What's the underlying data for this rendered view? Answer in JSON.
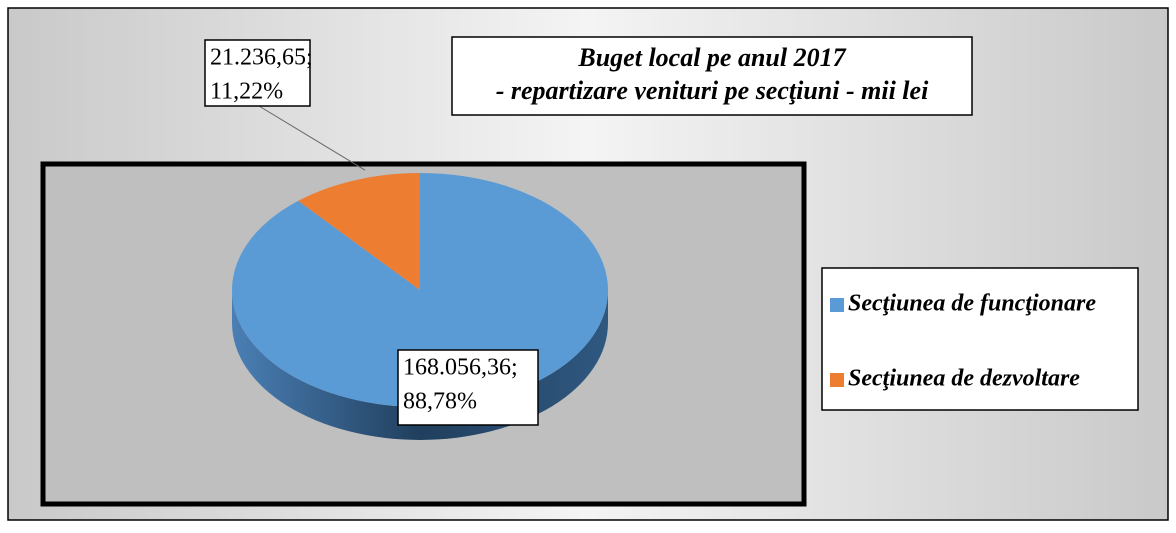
{
  "chart_data": {
    "type": "pie",
    "title": [
      "Buget local pe anul 2017",
      "- repartizare venituri pe secţiuni - mii lei"
    ],
    "categories": [
      "Secţiunea de funcţionare",
      "Secţiunea de dezvoltare"
    ],
    "values": [
      168056.36,
      21236.65
    ],
    "value_labels": [
      [
        "168.056,36;",
        "88,78%"
      ],
      [
        "21.236,65;",
        "11,22%"
      ]
    ],
    "colors": [
      "#5b9bd5",
      "#ed7d31"
    ],
    "legend": "right"
  }
}
